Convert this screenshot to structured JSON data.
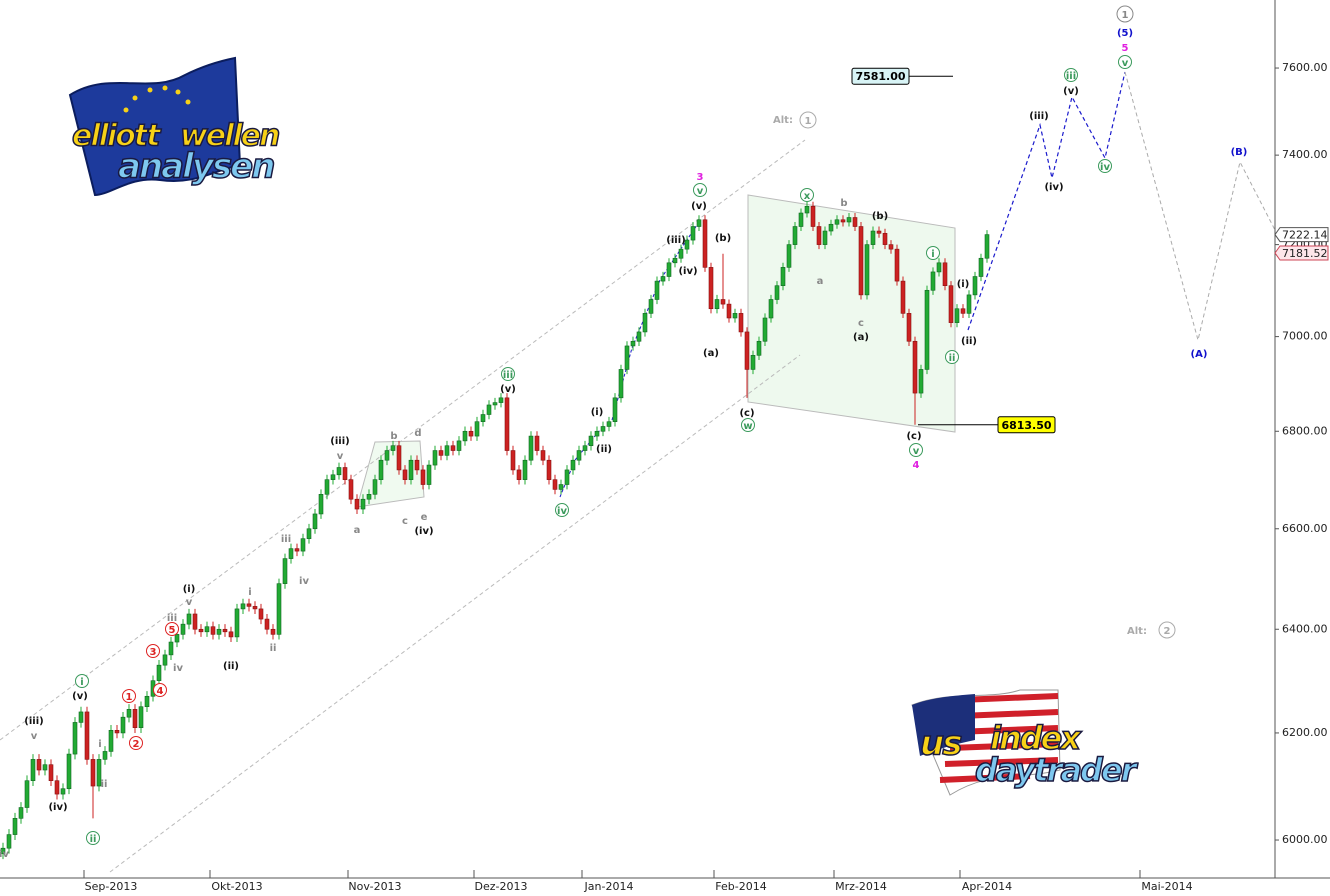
{
  "chart_data": {
    "type": "candlestick",
    "log_scale": true,
    "up_color": "#22aa33",
    "down_color": "#cc2222",
    "xlim": [
      -0.5,
      212
    ],
    "ylim": [
      5927,
      7760
    ],
    "yticks": [
      {
        "value": 6000,
        "label": "6000.00"
      },
      {
        "value": 6200,
        "label": "6200.00"
      },
      {
        "value": 6400,
        "label": "6400.00"
      },
      {
        "value": 6600,
        "label": "6600.00"
      },
      {
        "value": 6800,
        "label": "6800.00"
      },
      {
        "value": 7000,
        "label": "7000.00"
      },
      {
        "value": 7200,
        "label": "7200.00"
      },
      {
        "value": 7400,
        "label": "7400.00"
      },
      {
        "value": 7600,
        "label": "7600.00"
      }
    ],
    "xticks": [
      {
        "value": 18,
        "label": "Sep-2013"
      },
      {
        "value": 39,
        "label": "Okt-2013"
      },
      {
        "value": 62,
        "label": "Nov-2013"
      },
      {
        "value": 83,
        "label": "Dez-2013"
      },
      {
        "value": 101,
        "label": "Jan-2014"
      },
      {
        "value": 123,
        "label": "Feb-2014"
      },
      {
        "value": 143,
        "label": "Mrz-2014"
      },
      {
        "value": 164,
        "label": "Apr-2014"
      },
      {
        "value": 194,
        "label": "Mai-2014"
      }
    ],
    "ohlc": [
      [
        5975,
        5995,
        5965,
        5985
      ],
      [
        5985,
        6020,
        5975,
        6010
      ],
      [
        6010,
        6050,
        6000,
        6040
      ],
      [
        6040,
        6070,
        6030,
        6060
      ],
      [
        6060,
        6120,
        6050,
        6110
      ],
      [
        6110,
        6160,
        6100,
        6150
      ],
      [
        6150,
        6160,
        6120,
        6130
      ],
      [
        6130,
        6150,
        6120,
        6140
      ],
      [
        6140,
        6150,
        6100,
        6110
      ],
      [
        6110,
        6120,
        6075,
        6085
      ],
      [
        6085,
        6105,
        6075,
        6095
      ],
      [
        6095,
        6170,
        6085,
        6160
      ],
      [
        6160,
        6230,
        6150,
        6220
      ],
      [
        6220,
        6250,
        6210,
        6240
      ],
      [
        6240,
        6250,
        6140,
        6150
      ],
      [
        6150,
        6160,
        6040,
        6100
      ],
      [
        6100,
        6160,
        6090,
        6150
      ],
      [
        6150,
        6175,
        6140,
        6165
      ],
      [
        6165,
        6215,
        6155,
        6205
      ],
      [
        6205,
        6215,
        6190,
        6200
      ],
      [
        6200,
        6240,
        6190,
        6230
      ],
      [
        6230,
        6255,
        6220,
        6245
      ],
      [
        6245,
        6255,
        6200,
        6210
      ],
      [
        6210,
        6260,
        6200,
        6250
      ],
      [
        6250,
        6280,
        6240,
        6270
      ],
      [
        6270,
        6310,
        6260,
        6300
      ],
      [
        6300,
        6340,
        6290,
        6330
      ],
      [
        6330,
        6360,
        6320,
        6350
      ],
      [
        6350,
        6385,
        6340,
        6375
      ],
      [
        6375,
        6400,
        6365,
        6390
      ],
      [
        6390,
        6420,
        6380,
        6410
      ],
      [
        6410,
        6440,
        6400,
        6430
      ],
      [
        6430,
        6440,
        6390,
        6400
      ],
      [
        6400,
        6410,
        6385,
        6395
      ],
      [
        6395,
        6415,
        6385,
        6405
      ],
      [
        6405,
        6415,
        6380,
        6390
      ],
      [
        6390,
        6410,
        6380,
        6400
      ],
      [
        6400,
        6410,
        6385,
        6395
      ],
      [
        6395,
        6405,
        6375,
        6385
      ],
      [
        6385,
        6450,
        6375,
        6440
      ],
      [
        6440,
        6460,
        6430,
        6450
      ],
      [
        6450,
        6460,
        6435,
        6445
      ],
      [
        6445,
        6455,
        6430,
        6440
      ],
      [
        6440,
        6450,
        6410,
        6420
      ],
      [
        6420,
        6430,
        6390,
        6400
      ],
      [
        6400,
        6410,
        6380,
        6390
      ],
      [
        6390,
        6500,
        6380,
        6490
      ],
      [
        6490,
        6550,
        6480,
        6540
      ],
      [
        6540,
        6570,
        6530,
        6560
      ],
      [
        6560,
        6570,
        6545,
        6555
      ],
      [
        6555,
        6590,
        6545,
        6580
      ],
      [
        6580,
        6610,
        6570,
        6600
      ],
      [
        6600,
        6640,
        6590,
        6630
      ],
      [
        6630,
        6680,
        6620,
        6670
      ],
      [
        6670,
        6710,
        6660,
        6700
      ],
      [
        6700,
        6720,
        6690,
        6710
      ],
      [
        6710,
        6735,
        6700,
        6725
      ],
      [
        6725,
        6735,
        6690,
        6700
      ],
      [
        6700,
        6710,
        6650,
        6660
      ],
      [
        6660,
        6670,
        6630,
        6640
      ],
      [
        6640,
        6670,
        6630,
        6660
      ],
      [
        6660,
        6680,
        6650,
        6670
      ],
      [
        6670,
        6710,
        6660,
        6700
      ],
      [
        6700,
        6750,
        6690,
        6740
      ],
      [
        6740,
        6770,
        6730,
        6760
      ],
      [
        6760,
        6780,
        6750,
        6770
      ],
      [
        6770,
        6780,
        6710,
        6720
      ],
      [
        6720,
        6730,
        6690,
        6700
      ],
      [
        6700,
        6750,
        6690,
        6740
      ],
      [
        6740,
        6750,
        6710,
        6720
      ],
      [
        6720,
        6730,
        6680,
        6690
      ],
      [
        6690,
        6740,
        6680,
        6730
      ],
      [
        6730,
        6770,
        6720,
        6760
      ],
      [
        6760,
        6770,
        6740,
        6750
      ],
      [
        6750,
        6780,
        6740,
        6770
      ],
      [
        6770,
        6780,
        6750,
        6760
      ],
      [
        6760,
        6790,
        6750,
        6780
      ],
      [
        6780,
        6810,
        6770,
        6800
      ],
      [
        6800,
        6810,
        6780,
        6790
      ],
      [
        6790,
        6830,
        6780,
        6820
      ],
      [
        6820,
        6845,
        6810,
        6835
      ],
      [
        6835,
        6865,
        6825,
        6855
      ],
      [
        6855,
        6870,
        6845,
        6860
      ],
      [
        6860,
        6880,
        6850,
        6870
      ],
      [
        6870,
        6880,
        6750,
        6760
      ],
      [
        6760,
        6770,
        6710,
        6720
      ],
      [
        6720,
        6730,
        6690,
        6700
      ],
      [
        6700,
        6750,
        6690,
        6740
      ],
      [
        6740,
        6800,
        6730,
        6790
      ],
      [
        6790,
        6800,
        6750,
        6760
      ],
      [
        6760,
        6770,
        6730,
        6740
      ],
      [
        6740,
        6750,
        6690,
        6700
      ],
      [
        6700,
        6710,
        6670,
        6680
      ],
      [
        6680,
        6700,
        6670,
        6690
      ],
      [
        6690,
        6730,
        6680,
        6720
      ],
      [
        6720,
        6750,
        6710,
        6740
      ],
      [
        6740,
        6770,
        6730,
        6760
      ],
      [
        6760,
        6780,
        6750,
        6770
      ],
      [
        6770,
        6800,
        6760,
        6790
      ],
      [
        6790,
        6810,
        6780,
        6800
      ],
      [
        6800,
        6820,
        6790,
        6810
      ],
      [
        6810,
        6830,
        6800,
        6820
      ],
      [
        6820,
        6880,
        6810,
        6870
      ],
      [
        6870,
        6940,
        6860,
        6930
      ],
      [
        6930,
        6990,
        6920,
        6980
      ],
      [
        6980,
        7000,
        6970,
        6990
      ],
      [
        6990,
        7020,
        6980,
        7010
      ],
      [
        7010,
        7060,
        7000,
        7050
      ],
      [
        7050,
        7090,
        7040,
        7080
      ],
      [
        7080,
        7130,
        7070,
        7120
      ],
      [
        7120,
        7140,
        7110,
        7130
      ],
      [
        7130,
        7170,
        7120,
        7160
      ],
      [
        7160,
        7180,
        7150,
        7170
      ],
      [
        7170,
        7200,
        7160,
        7190
      ],
      [
        7190,
        7220,
        7180,
        7210
      ],
      [
        7210,
        7250,
        7200,
        7240
      ],
      [
        7240,
        7265,
        7230,
        7255
      ],
      [
        7255,
        7265,
        7140,
        7150
      ],
      [
        7150,
        7160,
        7050,
        7060
      ],
      [
        7060,
        7090,
        7050,
        7080
      ],
      [
        7080,
        7180,
        7060,
        7070
      ],
      [
        7070,
        7080,
        7030,
        7040
      ],
      [
        7040,
        7060,
        7030,
        7050
      ],
      [
        7050,
        7060,
        7000,
        7010
      ],
      [
        7010,
        7020,
        6870,
        6930
      ],
      [
        6930,
        6970,
        6920,
        6960
      ],
      [
        6960,
        7000,
        6950,
        6990
      ],
      [
        6990,
        7050,
        6980,
        7040
      ],
      [
        7040,
        7090,
        7030,
        7080
      ],
      [
        7080,
        7120,
        7070,
        7110
      ],
      [
        7110,
        7160,
        7100,
        7150
      ],
      [
        7150,
        7210,
        7140,
        7200
      ],
      [
        7200,
        7250,
        7190,
        7240
      ],
      [
        7240,
        7280,
        7230,
        7270
      ],
      [
        7270,
        7295,
        7260,
        7285
      ],
      [
        7285,
        7295,
        7230,
        7240
      ],
      [
        7240,
        7250,
        7190,
        7200
      ],
      [
        7200,
        7240,
        7190,
        7230
      ],
      [
        7230,
        7255,
        7220,
        7245
      ],
      [
        7245,
        7265,
        7235,
        7255
      ],
      [
        7255,
        7265,
        7240,
        7250
      ],
      [
        7250,
        7270,
        7240,
        7260
      ],
      [
        7260,
        7270,
        7230,
        7240
      ],
      [
        7240,
        7250,
        7080,
        7090
      ],
      [
        7090,
        7210,
        7080,
        7200
      ],
      [
        7200,
        7240,
        7190,
        7230
      ],
      [
        7230,
        7240,
        7215,
        7225
      ],
      [
        7225,
        7235,
        7190,
        7200
      ],
      [
        7200,
        7210,
        7180,
        7190
      ],
      [
        7190,
        7200,
        7110,
        7120
      ],
      [
        7120,
        7130,
        7040,
        7050
      ],
      [
        7050,
        7060,
        6980,
        6990
      ],
      [
        6990,
        7000,
        6813.5,
        6880
      ],
      [
        6880,
        6940,
        6870,
        6930
      ],
      [
        6930,
        7110,
        6920,
        7100
      ],
      [
        7100,
        7150,
        7090,
        7140
      ],
      [
        7140,
        7170,
        7130,
        7160
      ],
      [
        7160,
        7170,
        7100,
        7110
      ],
      [
        7110,
        7120,
        7020,
        7030
      ],
      [
        7030,
        7070,
        7020,
        7060
      ],
      [
        7060,
        7070,
        7040,
        7050
      ],
      [
        7050,
        7100,
        7040,
        7090
      ],
      [
        7090,
        7140,
        7080,
        7130
      ],
      [
        7130,
        7180,
        7120,
        7170
      ],
      [
        7170,
        7232,
        7160,
        7222.14
      ]
    ],
    "price_tags": [
      {
        "value": 7222.14,
        "label": "7222.14"
      },
      {
        "value": 7181.52,
        "label": "7181.52"
      }
    ],
    "levels": [
      {
        "value": 7581,
        "label": "7581.00"
      },
      {
        "value": 6813.5,
        "label": "6813.50"
      }
    ],
    "wave_labels": [
      "iv",
      "(iii)",
      "v",
      "(iv)",
      "(v)",
      "i",
      "ii",
      "i",
      "ii",
      "1",
      "2",
      "3",
      "4",
      "5",
      "iii",
      "v",
      "(i)",
      "iv",
      "(ii)",
      "i",
      "ii",
      "iii",
      "iv",
      "(iii)",
      "v",
      "a",
      "b",
      "d",
      "c",
      "e",
      "(iv)",
      "iii",
      "(v)",
      "iv",
      "(i)",
      "(ii)",
      "(iii)",
      "(iv)",
      "(v)",
      "v",
      "3",
      "(a)",
      "(b)",
      "(c)",
      "w",
      "x",
      "b",
      "a",
      "(b)",
      "c",
      "(a)",
      "i",
      "(c)",
      "v",
      "4",
      "(i)",
      "(ii)",
      "ii",
      "(iii)",
      "(iv)",
      "iii",
      "(v)",
      "iv",
      "1",
      "(5)",
      "5",
      "v",
      "(B)",
      "(A)",
      "Alt:",
      "1",
      "Alt:",
      "2"
    ],
    "logos": {
      "top": [
        "elliott",
        "wellen",
        "analysen"
      ],
      "bottom": [
        "us",
        "index",
        "daytrader"
      ]
    }
  }
}
